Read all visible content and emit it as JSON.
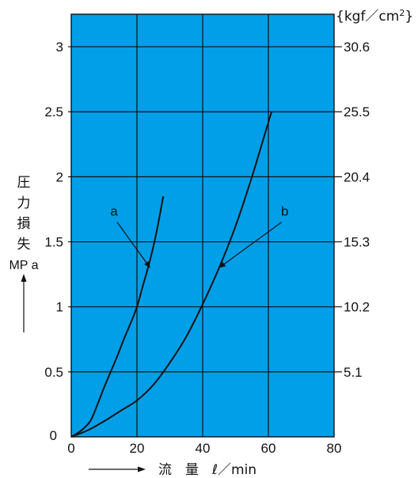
{
  "chart_data": {
    "type": "line",
    "title": "",
    "xlabel": "流　量　ℓ／min",
    "ylabel": "圧力損失 MP a",
    "y2label": "{kgf／cm²}",
    "xlim": [
      0,
      80
    ],
    "ylim": [
      0,
      3.25
    ],
    "x_ticks": [
      "0",
      "20",
      "40",
      "60",
      "80"
    ],
    "x_tick_values": [
      0,
      20,
      40,
      60,
      80
    ],
    "y_ticks": [
      "0",
      "0.5",
      "1",
      "1.5",
      "2",
      "2.5",
      "3"
    ],
    "y_tick_values": [
      0,
      0.5,
      1,
      1.5,
      2,
      2.5,
      3
    ],
    "y2_ticks": [
      "5.1",
      "10.2",
      "15.3",
      "20.4",
      "25.5",
      "30.6"
    ],
    "y2_tick_values": [
      0.5,
      1,
      1.5,
      2,
      2.5,
      3
    ],
    "grid": true,
    "background_color": "#009fe8",
    "line_color": "#111111",
    "series": [
      {
        "name": "a",
        "x": [
          0,
          2,
          4,
          6,
          8,
          10,
          12,
          14,
          16,
          18,
          20,
          22,
          24,
          26,
          28
        ],
        "y": [
          0,
          0.03,
          0.07,
          0.13,
          0.25,
          0.38,
          0.5,
          0.62,
          0.75,
          0.87,
          1.0,
          1.18,
          1.36,
          1.58,
          1.85
        ],
        "label_at": [
          13,
          1.7
        ],
        "pointer_to": [
          24,
          1.3
        ]
      },
      {
        "name": "b",
        "x": [
          0,
          5,
          10,
          15,
          20,
          25,
          30,
          35,
          40,
          45,
          50,
          55,
          60,
          61
        ],
        "y": [
          0,
          0.05,
          0.12,
          0.2,
          0.28,
          0.4,
          0.57,
          0.77,
          1.02,
          1.3,
          1.62,
          2.0,
          2.42,
          2.5
        ],
        "label_at": [
          65,
          1.7
        ],
        "pointer_to": [
          45,
          1.3
        ]
      }
    ]
  }
}
